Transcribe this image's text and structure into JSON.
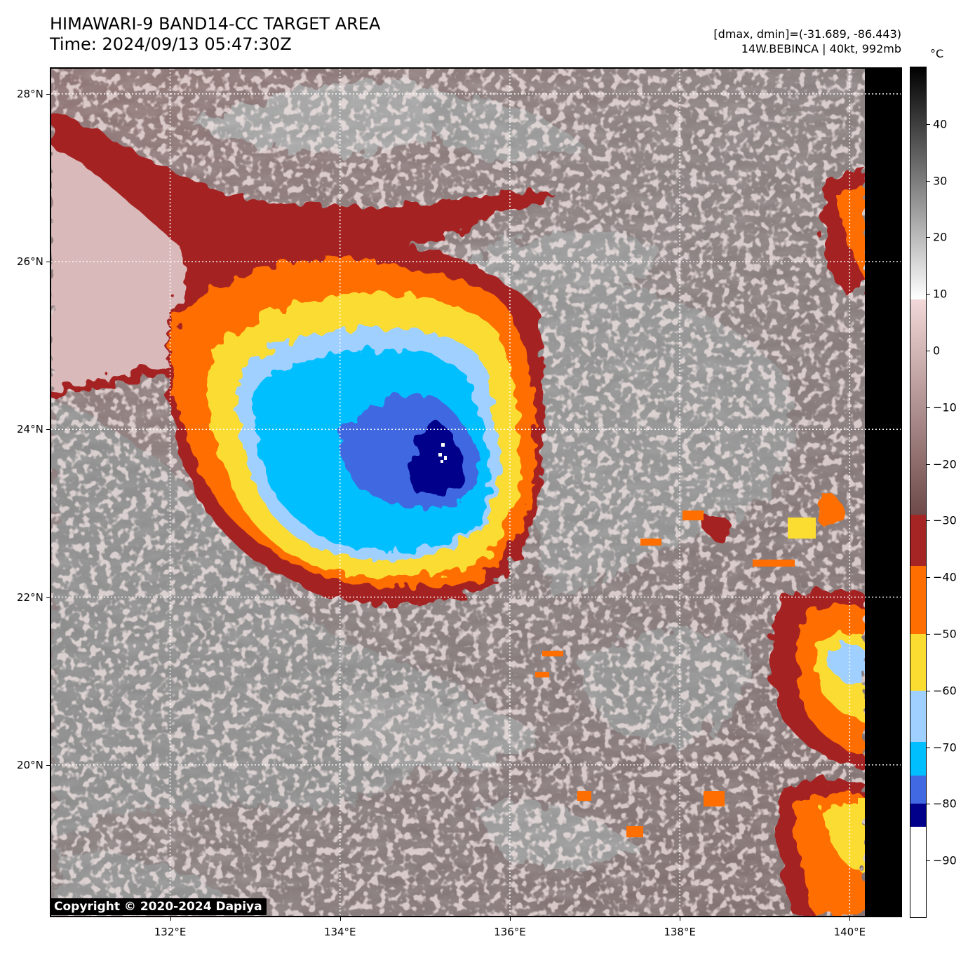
{
  "title": {
    "line1": "HIMAWARI-9 BAND14-CC TARGET AREA",
    "line2": "Time: 2024/09/13 05:47:30Z"
  },
  "info": {
    "range": "[dmax, dmin]=(-31.689, -86.443)",
    "storm": "14W.BEBINCA | 40kt, 992mb"
  },
  "colorbar": {
    "unit": "°C",
    "min": -100,
    "max": 50,
    "ticks": [
      "40",
      "30",
      "20",
      "10",
      "0",
      "−10",
      "−20",
      "−30",
      "−40",
      "−50",
      "−60",
      "−70",
      "−80",
      "−90"
    ],
    "tick_values": [
      40,
      30,
      20,
      10,
      0,
      -10,
      -20,
      -30,
      -40,
      -50,
      -60,
      -70,
      -80,
      -90
    ],
    "segments": [
      {
        "from": -100,
        "to": -84,
        "color": "#ffffff"
      },
      {
        "from": -84,
        "to": -80,
        "color": "#00008b"
      },
      {
        "from": -80,
        "to": -75,
        "color": "#4169e1"
      },
      {
        "from": -75,
        "to": -69,
        "color": "#00bfff"
      },
      {
        "from": -69,
        "to": -60,
        "color": "#a0d0ff"
      },
      {
        "from": -60,
        "to": -50,
        "color": "#fbdc30"
      },
      {
        "from": -50,
        "to": -38,
        "color": "#ff6e00"
      },
      {
        "from": -38,
        "to": -29,
        "color": "#a52424"
      },
      {
        "from": -29,
        "to": 9,
        "gradient": [
          "#f2d8d8",
          "#6e4a4a"
        ]
      },
      {
        "from": 9,
        "to": 50,
        "gradient": [
          "#000000",
          "#ffffff"
        ]
      }
    ]
  },
  "axes": {
    "lat_labels": [
      "28°N",
      "26°N",
      "24°N",
      "22°N",
      "20°N"
    ],
    "lat_values": [
      28,
      26,
      24,
      22,
      20
    ],
    "lon_labels": [
      "132°E",
      "134°E",
      "136°E",
      "138°E",
      "140°E"
    ],
    "lon_values": [
      132,
      134,
      136,
      138,
      140
    ],
    "lon_range": [
      130.6,
      140.6
    ],
    "lat_range": [
      18.2,
      28.3
    ]
  },
  "copyright": "Copyright © 2020-2024 Dapiya",
  "colors": {
    "deep_blue": "#00008b",
    "royal_blue": "#4169e1",
    "cyan": "#00bfff",
    "light_blue": "#a0d0ff",
    "yellow": "#fbdc30",
    "orange": "#ff6e00",
    "dark_red": "#a52424",
    "pink_brown": "#c8a2a2",
    "grey": "#8a8a8a"
  }
}
